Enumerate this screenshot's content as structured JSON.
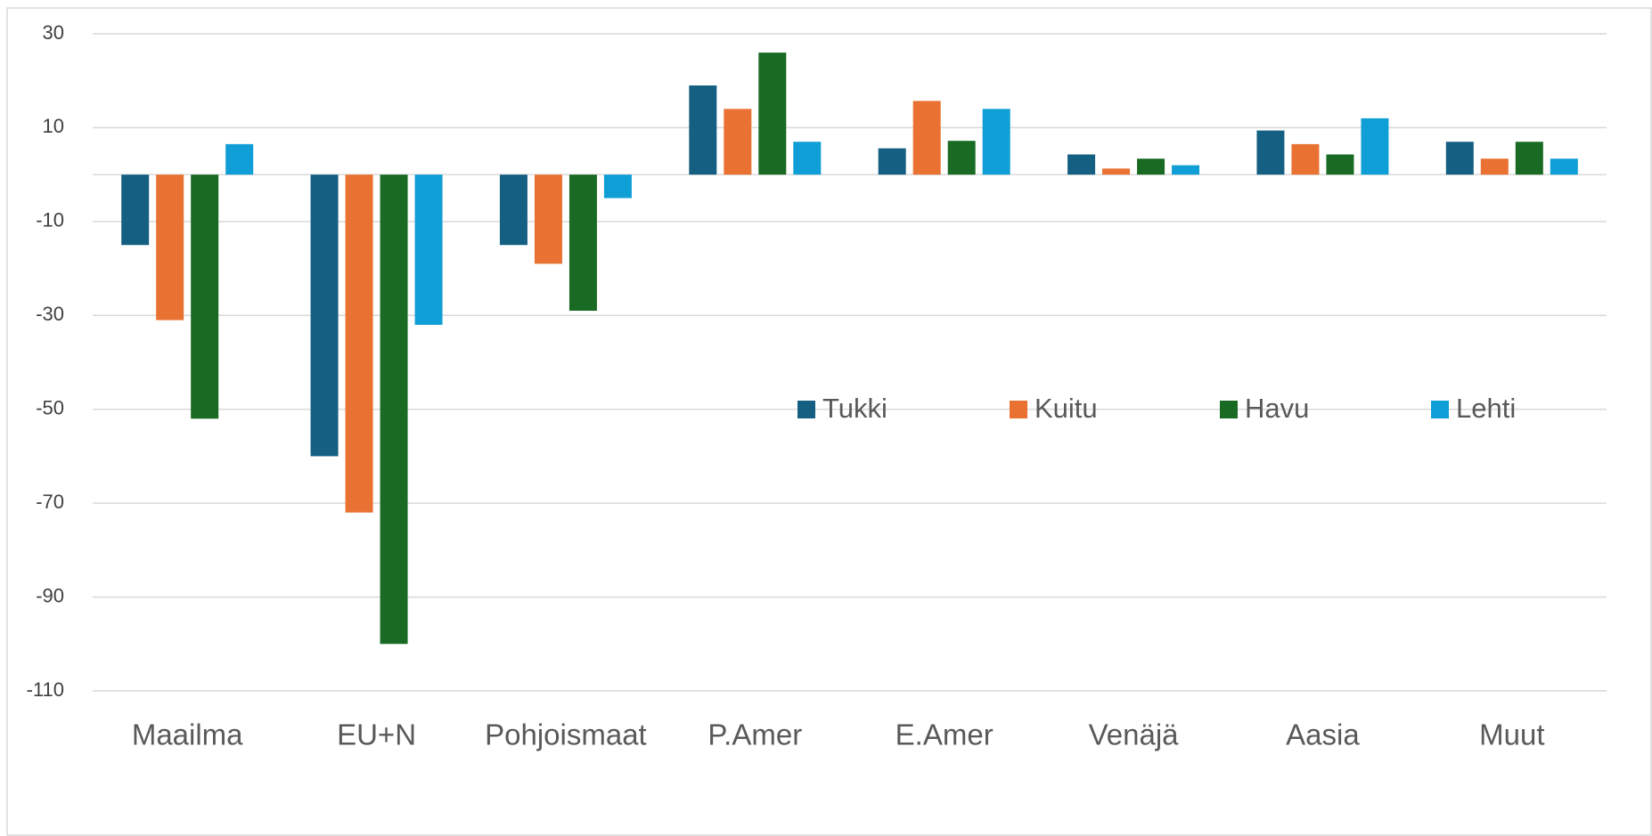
{
  "chart_data": {
    "type": "bar",
    "categories": [
      "Maailma",
      "EU+N",
      "Pohjoismaat",
      "P.Amer",
      "E.Amer",
      "Venäjä",
      "Aasia",
      "Muut"
    ],
    "series": [
      {
        "name": "Tukki",
        "color": "#156082",
        "values": [
          -15,
          -60,
          -15,
          19,
          5.6,
          4.3,
          9.4,
          7
        ]
      },
      {
        "name": "Kuitu",
        "color": "#e97132",
        "values": [
          -31,
          -72,
          -19,
          14,
          15.7,
          1.3,
          6.5,
          3.4
        ]
      },
      {
        "name": "Havu",
        "color": "#196b24",
        "values": [
          -52,
          -100,
          -29,
          26,
          7.2,
          3.4,
          4.3,
          7
        ]
      },
      {
        "name": "Lehti",
        "color": "#0f9ed5",
        "values": [
          6.5,
          -32,
          -5,
          7,
          14,
          2,
          12,
          3.4
        ]
      }
    ],
    "ylim": [
      -110,
      30
    ],
    "yticks": [
      30,
      10,
      -10,
      -30,
      -50,
      -70,
      -90,
      -110
    ],
    "grid": true,
    "legend": "center-right"
  }
}
